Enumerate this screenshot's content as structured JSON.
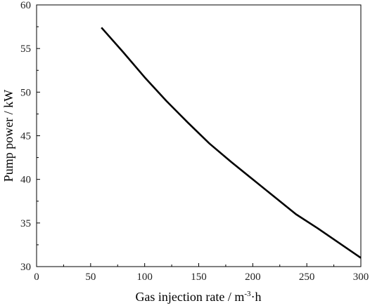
{
  "chart_data": {
    "type": "line",
    "title": "",
    "xlabel": {
      "text": "Gas injection rate / m",
      "superscript": "-3",
      "suffix": "·h"
    },
    "ylabel": "Pump power / kW",
    "xlim": [
      0,
      300
    ],
    "ylim": [
      30,
      60
    ],
    "x_ticks": [
      0,
      50,
      100,
      150,
      200,
      250,
      300
    ],
    "y_ticks": [
      30,
      35,
      40,
      45,
      50,
      55,
      60
    ],
    "grid": false,
    "legend": "none",
    "series": [
      {
        "color": "#000000",
        "x": [
          60,
          80,
          100,
          120,
          140,
          160,
          180,
          200,
          220,
          240,
          260,
          280,
          300
        ],
        "y": [
          57.4,
          54.6,
          51.7,
          49.0,
          46.5,
          44.1,
          42.0,
          40.0,
          38.0,
          36.0,
          34.4,
          32.7,
          31.0
        ]
      }
    ]
  }
}
